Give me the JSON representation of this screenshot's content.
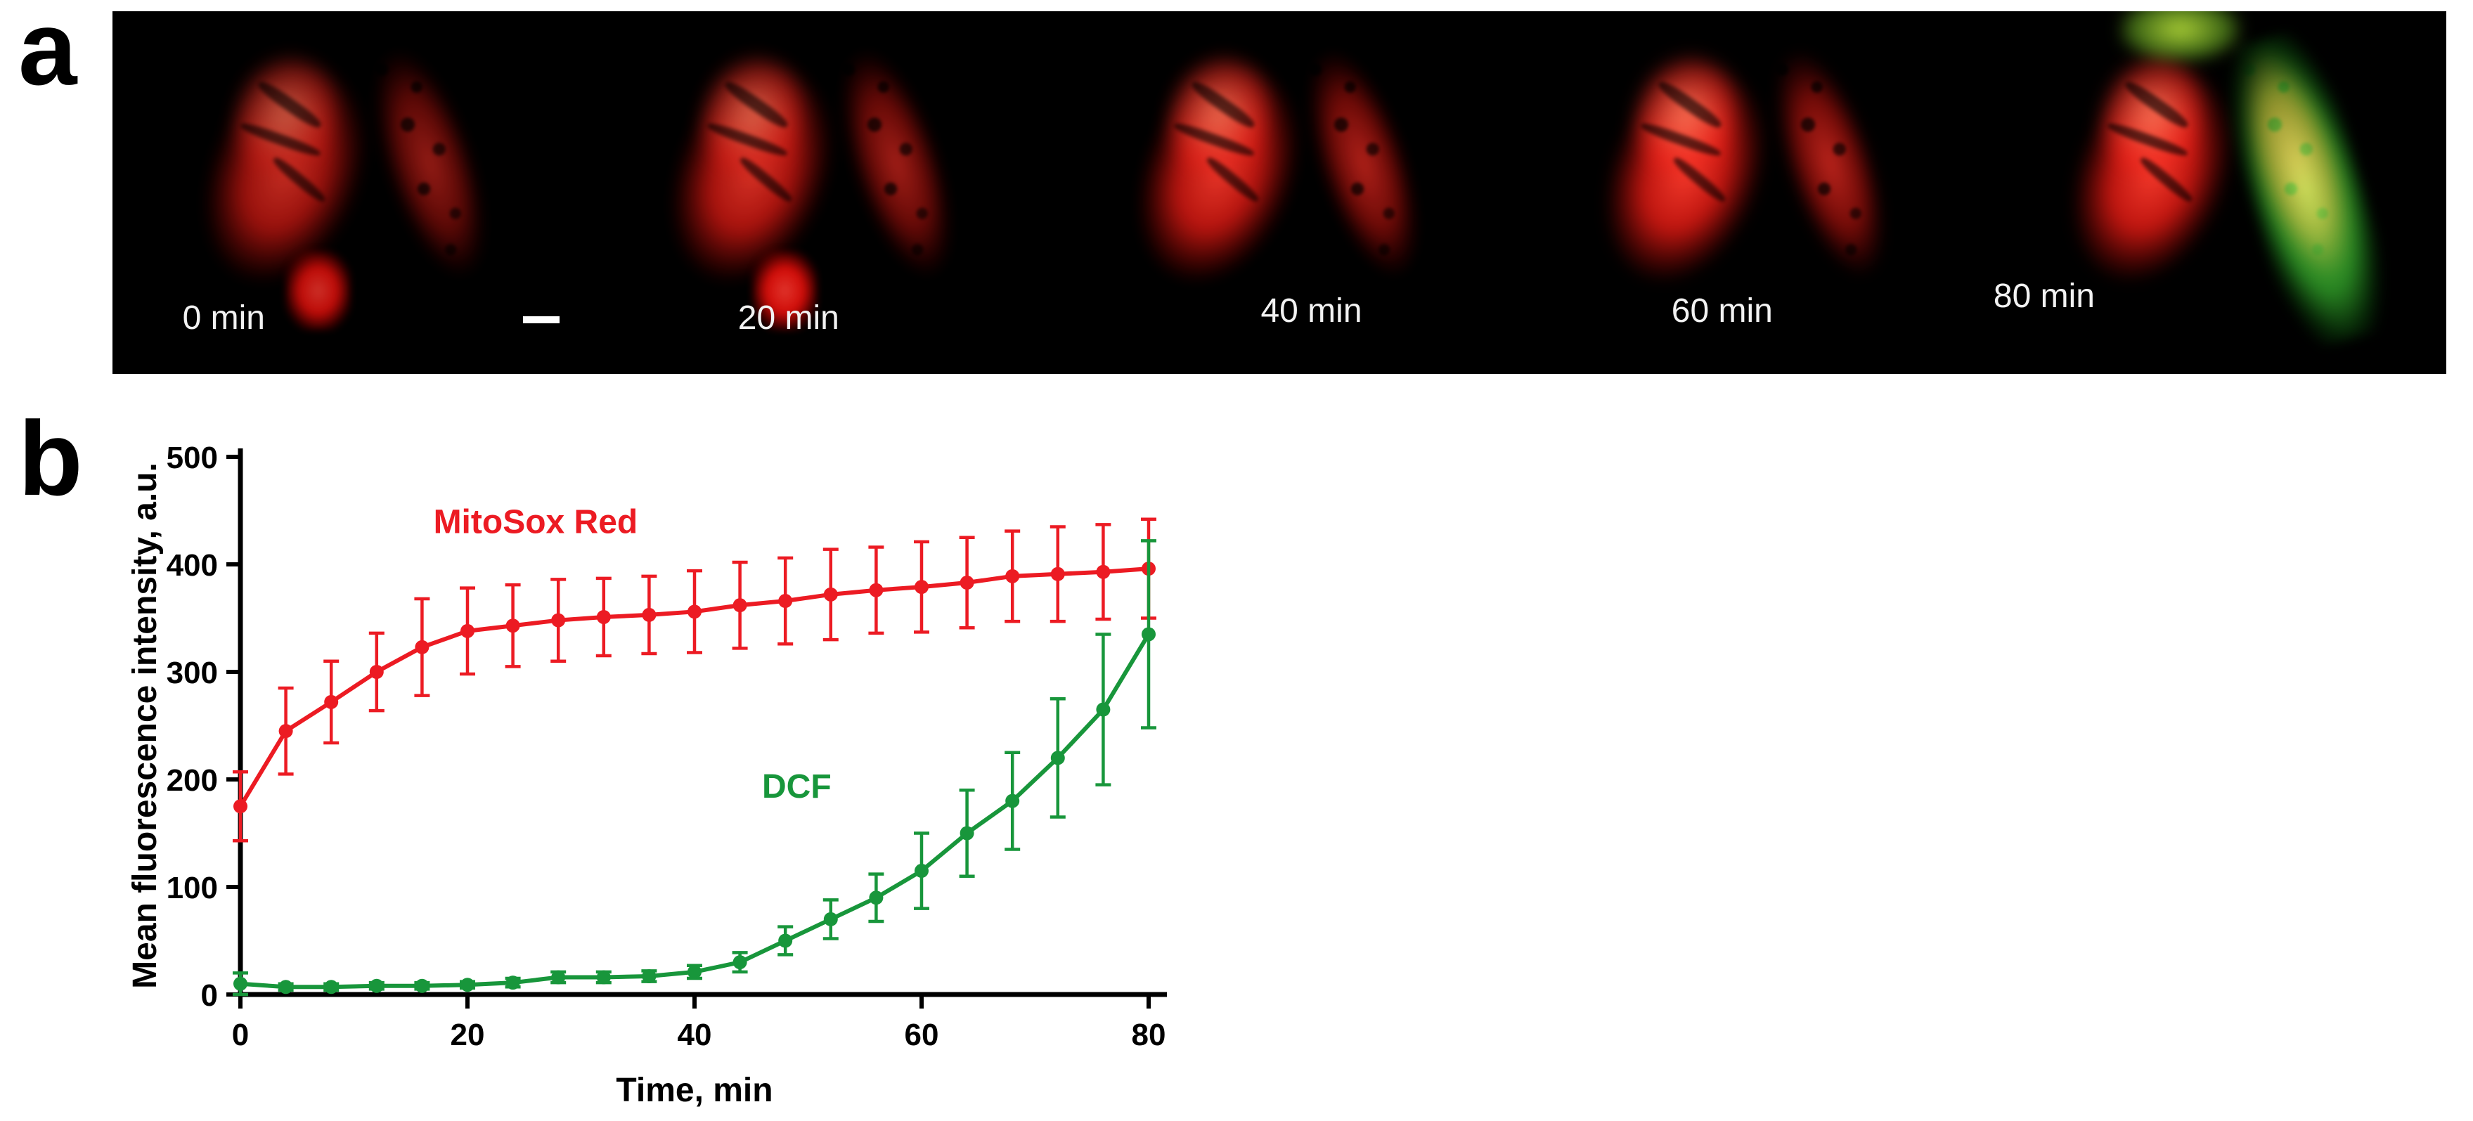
{
  "figure": {
    "background": "#ffffff",
    "panel_a": {
      "label": "a",
      "frames": [
        {
          "time_label": "0 min",
          "scale_bar": true,
          "green_overlay": false,
          "hotspot": true,
          "intensity": 0.8
        },
        {
          "time_label": "20 min",
          "scale_bar": false,
          "green_overlay": false,
          "hotspot": true,
          "intensity": 0.88
        },
        {
          "time_label": "40 min",
          "scale_bar": false,
          "green_overlay": false,
          "hotspot": false,
          "intensity": 0.95
        },
        {
          "time_label": "60 min",
          "scale_bar": false,
          "green_overlay": false,
          "hotspot": false,
          "intensity": 1.0
        },
        {
          "time_label": "80 min",
          "scale_bar": false,
          "green_overlay": true,
          "hotspot": false,
          "intensity": 1.0
        }
      ]
    },
    "panel_b": {
      "label": "b"
    }
  },
  "chart_data": {
    "type": "line",
    "x": [
      0,
      4,
      8,
      12,
      16,
      20,
      24,
      28,
      32,
      36,
      40,
      44,
      48,
      52,
      56,
      60,
      64,
      68,
      72,
      76,
      80
    ],
    "series": [
      {
        "name": "MitoSox Red",
        "color": "#ec1b23",
        "values": [
          175,
          245,
          272,
          300,
          323,
          338,
          343,
          348,
          351,
          353,
          356,
          362,
          366,
          372,
          376,
          379,
          383,
          389,
          391,
          393,
          396
        ],
        "errors": [
          32,
          40,
          38,
          36,
          45,
          40,
          38,
          38,
          36,
          36,
          38,
          40,
          40,
          42,
          40,
          42,
          42,
          42,
          44,
          44,
          46
        ]
      },
      {
        "name": "DCF",
        "color": "#18963b",
        "values": [
          10,
          7,
          7,
          8,
          8,
          9,
          11,
          16,
          16,
          17,
          21,
          30,
          50,
          70,
          90,
          115,
          150,
          180,
          220,
          265,
          335
        ],
        "errors": [
          10,
          3,
          3,
          3,
          3,
          3,
          4,
          5,
          5,
          5,
          6,
          9,
          13,
          18,
          22,
          35,
          40,
          45,
          55,
          70,
          87
        ]
      }
    ],
    "title": "",
    "xlabel": "Time, min",
    "ylabel": "Mean fluorescence intensity, a.u.",
    "xlim": [
      0,
      80
    ],
    "ylim": [
      0,
      500
    ],
    "xticks": [
      0,
      20,
      40,
      60,
      80
    ],
    "yticks": [
      0,
      100,
      200,
      300,
      400,
      500
    ],
    "grid": false,
    "legend_position": "inline-annotations",
    "annotations": [
      {
        "text": "MitoSox Red",
        "color": "#ec1b23",
        "x": 26,
        "y": 429
      },
      {
        "text": "DCF",
        "color": "#18963b",
        "x": 49,
        "y": 183
      }
    ]
  }
}
